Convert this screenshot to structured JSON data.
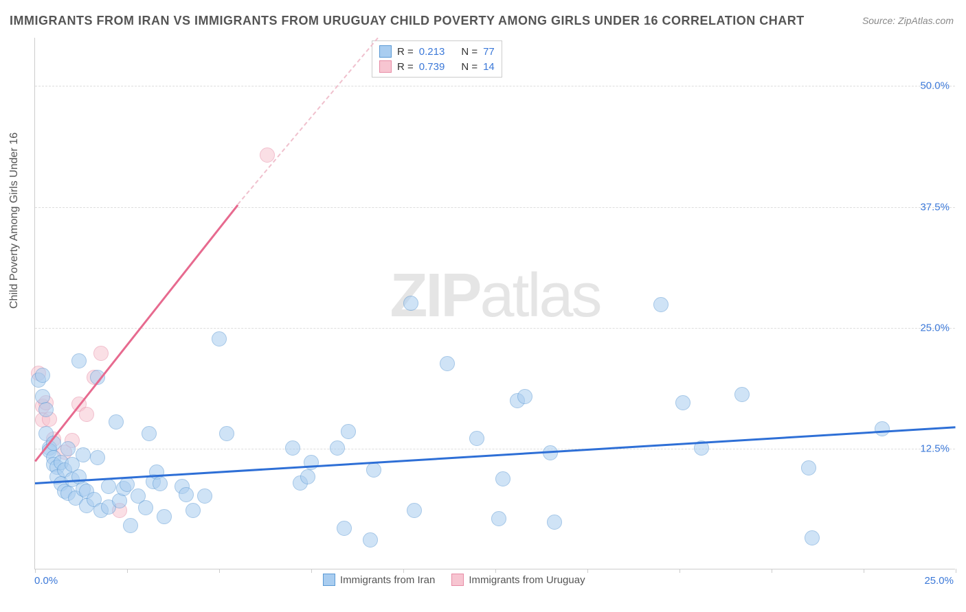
{
  "title": "IMMIGRANTS FROM IRAN VS IMMIGRANTS FROM URUGUAY CHILD POVERTY AMONG GIRLS UNDER 16 CORRELATION CHART",
  "source": "Source: ZipAtlas.com",
  "ylabel": "Child Poverty Among Girls Under 16",
  "watermark_bold": "ZIP",
  "watermark_light": "atlas",
  "chart": {
    "type": "scatter",
    "xlim": [
      0,
      25
    ],
    "ylim": [
      0,
      55
    ],
    "x_tick_positions": [
      0,
      2.5,
      5,
      7.5,
      10,
      12.5,
      15,
      17.5,
      20,
      22.5,
      25
    ],
    "x_tick_labels_shown": {
      "0": "0.0%",
      "25": "25.0%"
    },
    "y_gridlines": [
      12.5,
      25.0,
      37.5,
      50.0
    ],
    "y_tick_labels": {
      "12.5": "12.5%",
      "25.0": "25.0%",
      "37.5": "37.5%",
      "50.0": "50.0%"
    },
    "background_color": "#ffffff",
    "grid_color": "#dddddd",
    "axis_color": "#cccccc",
    "label_color": "#555555",
    "tick_label_color": "#3b78d8",
    "tick_label_fontsize": 15,
    "title_fontsize": 18
  },
  "series": {
    "iran": {
      "label": "Immigrants from Iran",
      "fill": "#a9cdf0",
      "stroke": "#5a99d4",
      "fill_opacity": 0.55,
      "marker_radius": 11,
      "trend_color": "#2e6fd6",
      "trend_width": 2.5,
      "trend_start": {
        "x": 0,
        "y": 9.0
      },
      "trend_end": {
        "x": 25,
        "y": 14.8
      },
      "R": "0.213",
      "N": "77",
      "points": [
        [
          0.1,
          19.5
        ],
        [
          0.2,
          20.0
        ],
        [
          0.2,
          17.8
        ],
        [
          0.3,
          16.5
        ],
        [
          0.3,
          14.0
        ],
        [
          0.4,
          12.5
        ],
        [
          0.4,
          12.2
        ],
        [
          0.5,
          11.5
        ],
        [
          0.5,
          13.0
        ],
        [
          0.5,
          10.8
        ],
        [
          0.6,
          10.5
        ],
        [
          0.6,
          9.5
        ],
        [
          0.7,
          11.0
        ],
        [
          0.7,
          8.8
        ],
        [
          0.8,
          10.2
        ],
        [
          0.8,
          8.0
        ],
        [
          0.9,
          7.8
        ],
        [
          0.9,
          12.4
        ],
        [
          1.0,
          9.2
        ],
        [
          1.0,
          10.8
        ],
        [
          1.1,
          7.3
        ],
        [
          1.2,
          21.5
        ],
        [
          1.2,
          9.5
        ],
        [
          1.3,
          11.8
        ],
        [
          1.3,
          8.2
        ],
        [
          1.4,
          6.5
        ],
        [
          1.4,
          8.0
        ],
        [
          1.6,
          7.2
        ],
        [
          1.7,
          11.5
        ],
        [
          1.7,
          19.8
        ],
        [
          1.8,
          6.0
        ],
        [
          2.0,
          6.4
        ],
        [
          2.0,
          8.5
        ],
        [
          2.2,
          15.2
        ],
        [
          2.3,
          7.0
        ],
        [
          2.4,
          8.3
        ],
        [
          2.5,
          8.7
        ],
        [
          2.6,
          4.5
        ],
        [
          2.8,
          7.5
        ],
        [
          3.0,
          6.3
        ],
        [
          3.1,
          14.0
        ],
        [
          3.2,
          9.0
        ],
        [
          3.3,
          10.0
        ],
        [
          3.4,
          8.8
        ],
        [
          3.5,
          5.4
        ],
        [
          4.0,
          8.5
        ],
        [
          4.1,
          7.7
        ],
        [
          4.3,
          6.0
        ],
        [
          4.6,
          7.5
        ],
        [
          5.0,
          23.8
        ],
        [
          5.2,
          14.0
        ],
        [
          7.0,
          12.5
        ],
        [
          7.2,
          8.9
        ],
        [
          7.4,
          9.5
        ],
        [
          7.5,
          11.0
        ],
        [
          8.2,
          12.5
        ],
        [
          8.4,
          4.2
        ],
        [
          8.5,
          14.2
        ],
        [
          9.1,
          3.0
        ],
        [
          9.2,
          10.2
        ],
        [
          10.2,
          27.5
        ],
        [
          10.3,
          6.0
        ],
        [
          11.2,
          21.2
        ],
        [
          12.0,
          13.5
        ],
        [
          12.6,
          5.2
        ],
        [
          12.7,
          9.3
        ],
        [
          13.1,
          17.4
        ],
        [
          13.3,
          17.8
        ],
        [
          14.0,
          12.0
        ],
        [
          14.1,
          4.8
        ],
        [
          17.0,
          27.3
        ],
        [
          17.6,
          17.2
        ],
        [
          18.1,
          12.5
        ],
        [
          19.2,
          18.0
        ],
        [
          21.0,
          10.4
        ],
        [
          21.1,
          3.2
        ],
        [
          23.0,
          14.5
        ]
      ]
    },
    "uruguay": {
      "label": "Immigrants from Uruguay",
      "fill": "#f7c5d1",
      "stroke": "#e78ba5",
      "fill_opacity": 0.55,
      "marker_radius": 11,
      "trend_color": "#e76a8f",
      "trend_width": 2.5,
      "trend_dashed_color": "#f0c0cd",
      "trend_start": {
        "x": 0,
        "y": 11.3
      },
      "trend_solid_end": {
        "x": 5.5,
        "y": 37.8
      },
      "trend_dashed_end": {
        "x": 9.3,
        "y": 55.0
      },
      "R": "0.739",
      "N": "14",
      "points": [
        [
          0.1,
          20.2
        ],
        [
          0.2,
          16.8
        ],
        [
          0.2,
          15.4
        ],
        [
          0.3,
          17.2
        ],
        [
          0.4,
          15.5
        ],
        [
          0.5,
          13.4
        ],
        [
          0.8,
          12.1
        ],
        [
          1.0,
          13.3
        ],
        [
          1.2,
          17.0
        ],
        [
          1.4,
          16.0
        ],
        [
          1.6,
          19.8
        ],
        [
          1.8,
          22.3
        ],
        [
          2.3,
          6.0
        ],
        [
          6.3,
          42.8
        ]
      ]
    }
  },
  "legend_top": {
    "r_label": "R  =",
    "n_label": "N  ="
  }
}
